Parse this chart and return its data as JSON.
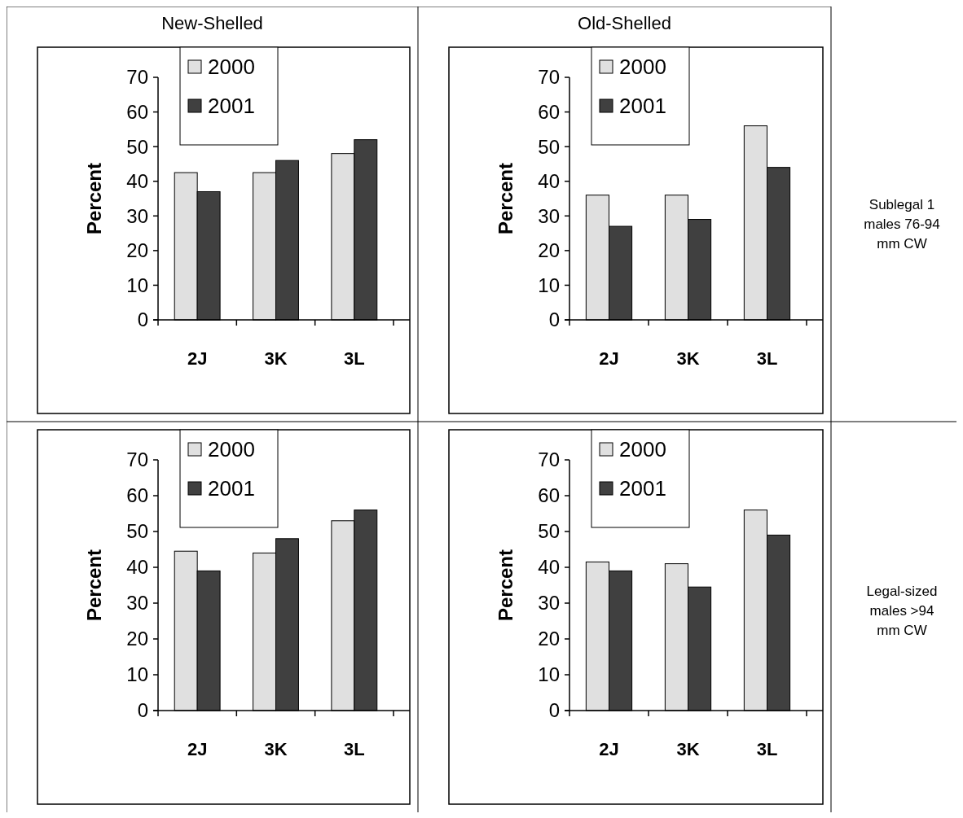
{
  "chart_data": [
    {
      "type": "bar",
      "title": "New-Shelled",
      "ylabel": "Percent",
      "categories": [
        "2J",
        "3K",
        "3L"
      ],
      "ylim": [
        0,
        70
      ],
      "yticks": [
        0,
        10,
        20,
        30,
        40,
        50,
        60,
        70
      ],
      "legend": "top",
      "grid": false,
      "series": [
        {
          "name": "2000",
          "color": "#e0e0e0",
          "values": [
            42.5,
            42.5,
            48
          ]
        },
        {
          "name": "2001",
          "color": "#404040",
          "values": [
            37,
            46,
            52
          ]
        }
      ]
    },
    {
      "type": "bar",
      "title": "Old-Shelled",
      "ylabel": "Percent",
      "categories": [
        "2J",
        "3K",
        "3L"
      ],
      "ylim": [
        0,
        70
      ],
      "yticks": [
        0,
        10,
        20,
        30,
        40,
        50,
        60,
        70
      ],
      "legend": "top",
      "grid": false,
      "annotations": [
        "Sublegal 1 males 76-94 mm CW"
      ],
      "series": [
        {
          "name": "2000",
          "color": "#e0e0e0",
          "values": [
            36,
            36,
            56
          ]
        },
        {
          "name": "2001",
          "color": "#404040",
          "values": [
            27,
            29,
            44
          ]
        }
      ]
    },
    {
      "type": "bar",
      "ylabel": "Percent",
      "categories": [
        "2J",
        "3K",
        "3L"
      ],
      "ylim": [
        0,
        70
      ],
      "yticks": [
        0,
        10,
        20,
        30,
        40,
        50,
        60,
        70
      ],
      "legend": "top",
      "grid": false,
      "series": [
        {
          "name": "2000",
          "color": "#e0e0e0",
          "values": [
            44.5,
            44,
            53
          ]
        },
        {
          "name": "2001",
          "color": "#404040",
          "values": [
            39,
            48,
            56
          ]
        }
      ]
    },
    {
      "type": "bar",
      "ylabel": "Percent",
      "categories": [
        "2J",
        "3K",
        "3L"
      ],
      "ylim": [
        0,
        70
      ],
      "yticks": [
        0,
        10,
        20,
        30,
        40,
        50,
        60,
        70
      ],
      "legend": "top",
      "grid": false,
      "annotations": [
        "Legal-sized males >94 mm CW"
      ],
      "series": [
        {
          "name": "2000",
          "color": "#e0e0e0",
          "values": [
            41.5,
            41,
            56
          ]
        },
        {
          "name": "2001",
          "color": "#404040",
          "values": [
            39,
            34.5,
            49
          ]
        }
      ]
    }
  ]
}
